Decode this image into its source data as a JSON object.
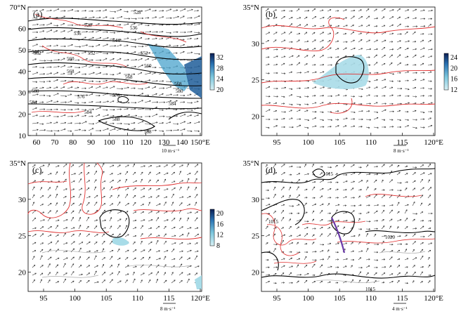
{
  "panels": [
    {
      "id": "a",
      "label": "(a)",
      "y_ticks": [
        "70°N",
        "60",
        "50",
        "40",
        "30",
        "20",
        "10"
      ],
      "x_ticks": [
        "60",
        "70",
        "80",
        "90",
        "100",
        "110",
        "120",
        "130",
        "140",
        "150°E"
      ],
      "ref_vector": "10 m·s⁻¹",
      "colorbar": [
        "32",
        "28",
        "24",
        "20"
      ],
      "contour_labels": [
        "528",
        "528",
        "536",
        "536",
        "544",
        "544",
        "552",
        "552",
        "552",
        "560",
        "560",
        "568",
        "568",
        "568",
        "576",
        "576",
        "580",
        "580",
        "584",
        "584",
        "584",
        "588",
        "588"
      ]
    },
    {
      "id": "b",
      "label": "(b)",
      "y_ticks": [
        "35°N",
        "30",
        "25",
        "20"
      ],
      "x_ticks": [
        "95",
        "100",
        "105",
        "110",
        "115",
        "120°E"
      ],
      "ref_vector": "8 m·s⁻¹",
      "colorbar": [
        "24",
        "20",
        "16",
        "12"
      ]
    },
    {
      "id": "c",
      "label": "(c)",
      "y_ticks": [
        "35°N",
        "30",
        "25",
        "20"
      ],
      "x_ticks": [
        "95",
        "100",
        "105",
        "110",
        "115",
        "120°E"
      ],
      "ref_vector": "8 m·s⁻¹",
      "colorbar": [
        "20",
        "16",
        "12",
        "8"
      ]
    },
    {
      "id": "d",
      "label": "(d)",
      "y_ticks": [
        "35°N",
        "30",
        "25",
        "20"
      ],
      "x_ticks": [
        "95",
        "100",
        "105",
        "110",
        "115",
        "120°E"
      ],
      "ref_vector": "4 m·s⁻¹",
      "contour_labels": [
        "1015",
        "1015",
        "1020",
        "1015"
      ]
    }
  ],
  "colors": {
    "black": "#000000",
    "red": "#e03030",
    "gray": "#9a9a9a",
    "shade_light": "#a8dce8",
    "shade_mid": "#4aa3cc",
    "shade_dark": "#1f5d99",
    "shade_darkest": "#0d2a66",
    "trough": "#6a3aa8"
  }
}
